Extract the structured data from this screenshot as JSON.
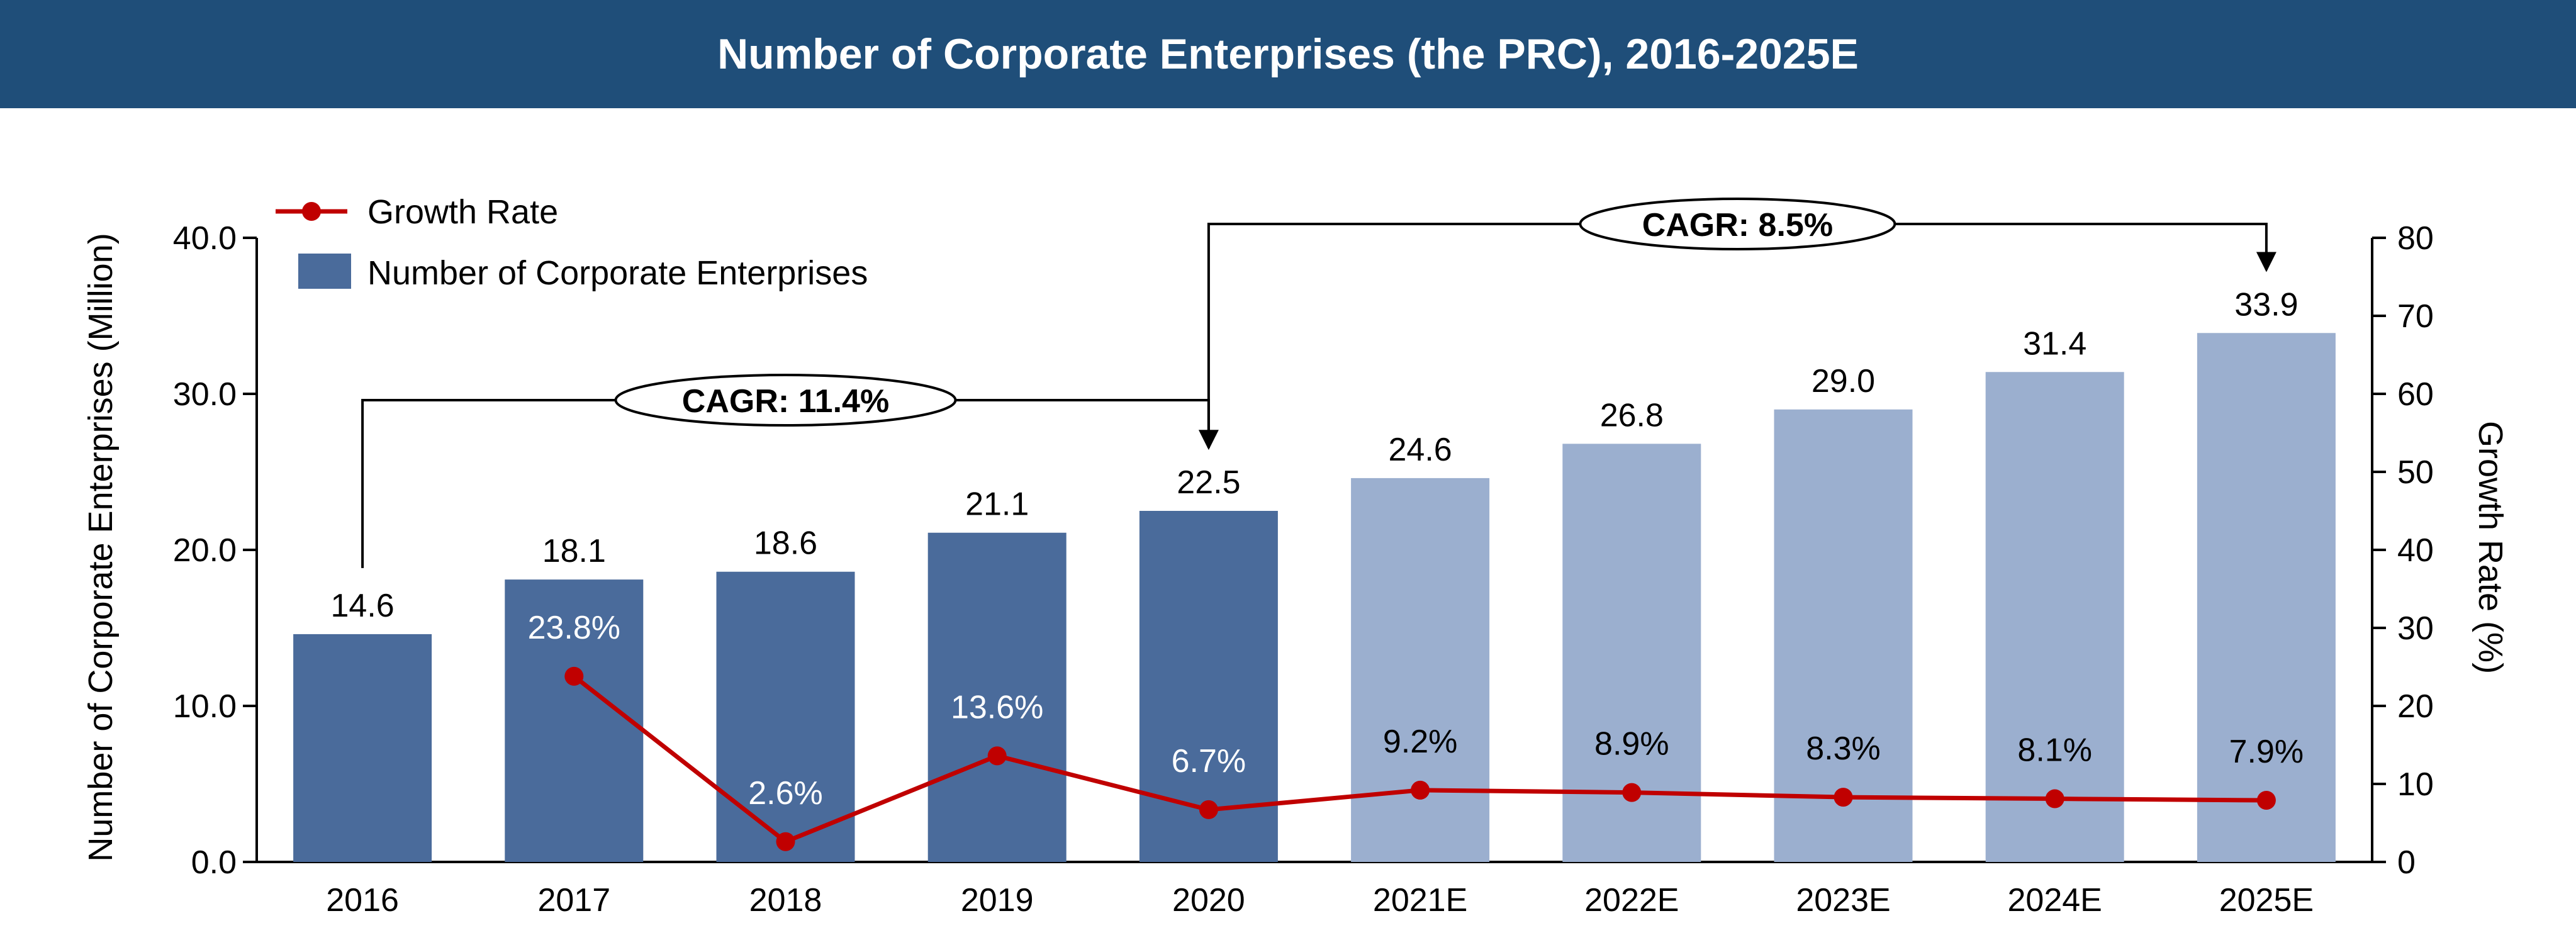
{
  "chart_data": {
    "type": "bar",
    "title": "Number of Corporate Enterprises (the PRC), 2016-2025E",
    "categories": [
      "2016",
      "2017",
      "2018",
      "2019",
      "2020",
      "2021E",
      "2022E",
      "2023E",
      "2024E",
      "2025E"
    ],
    "series": [
      {
        "name": "Number of Corporate Enterprises",
        "type": "bar",
        "axis": "left",
        "values": [
          14.6,
          18.1,
          18.6,
          21.1,
          22.5,
          24.6,
          26.8,
          29.0,
          31.4,
          33.9
        ],
        "labels": [
          "14.6",
          "18.1",
          "18.6",
          "21.1",
          "22.5",
          "24.6",
          "26.8",
          "29.0",
          "31.4",
          "33.9"
        ],
        "colors": [
          "#4a6b9b",
          "#4a6b9b",
          "#4a6b9b",
          "#4a6b9b",
          "#4a6b9b",
          "#9bafcf",
          "#9bafcf",
          "#9bafcf",
          "#9bafcf",
          "#9bafcf"
        ]
      },
      {
        "name": "Growth Rate",
        "type": "line",
        "axis": "right",
        "color": "#c00000",
        "values": [
          null,
          23.8,
          2.6,
          13.6,
          6.7,
          9.2,
          8.9,
          8.3,
          8.1,
          7.9
        ],
        "labels": [
          "",
          "23.8%",
          "2.6%",
          "13.6%",
          "6.7%",
          "9.2%",
          "8.9%",
          "8.3%",
          "8.1%",
          "7.9%"
        ]
      }
    ],
    "ylabel": "Number of Corporate Enterprises (Million)",
    "ylabel_right": "Growth Rate (%)",
    "ylim": [
      0,
      40
    ],
    "ylim_right": [
      0,
      80
    ],
    "yticks": [
      "0.0",
      "10.0",
      "20.0",
      "30.0",
      "40.0"
    ],
    "yticks_right": [
      "0",
      "10",
      "20",
      "30",
      "40",
      "50",
      "60",
      "70",
      "80"
    ],
    "legend": {
      "placement": "top-left",
      "entries": [
        "Growth Rate",
        "Number of Corporate Enterprises"
      ]
    },
    "annotations": [
      {
        "text": "CAGR: 11.4%",
        "from": "2016",
        "to": "2020"
      },
      {
        "text": "CAGR: 8.5%",
        "from": "2020",
        "to": "2025E"
      }
    ],
    "grid": false,
    "background_color": "#ffffff",
    "header_color": "#1f4e79"
  }
}
